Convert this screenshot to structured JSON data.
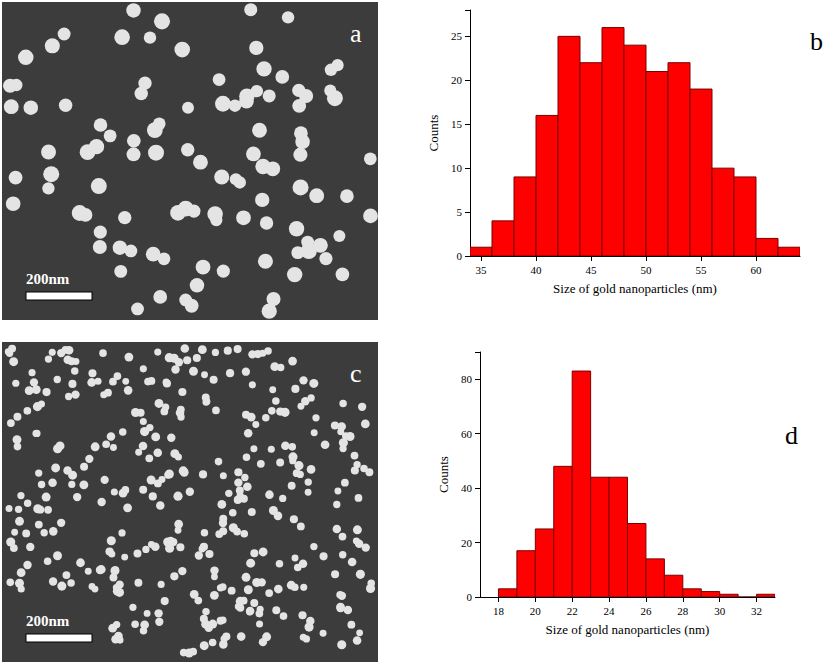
{
  "chart_data": [
    {
      "type": "histogram",
      "label": "b",
      "x_label": "Size of gold nanoparticles (nm)",
      "y_label": "Counts",
      "bins": [
        34,
        36,
        38,
        40,
        42,
        44,
        46,
        48,
        50,
        52,
        54,
        56,
        58,
        60,
        62,
        64
      ],
      "values": [
        1,
        4,
        9,
        16,
        25,
        22,
        26,
        24,
        21,
        22,
        19,
        10,
        9,
        2,
        1
      ],
      "color": "#ff0000",
      "xlim": [
        34,
        64
      ],
      "xticks": [
        35,
        40,
        45,
        50,
        55,
        60
      ],
      "ylim": [
        0,
        28
      ],
      "yticks": [
        0,
        5,
        10,
        15,
        20,
        25
      ],
      "grid": false
    },
    {
      "type": "histogram",
      "label": "d",
      "x_label": "Size of gold nanoparticles (nm)",
      "y_label": "Counts",
      "bins": [
        18,
        19,
        20,
        21,
        22,
        23,
        24,
        25,
        26,
        27,
        28,
        29,
        30,
        31,
        32,
        33
      ],
      "values": [
        3,
        17,
        25,
        48,
        83,
        44,
        44,
        27,
        14,
        8,
        3,
        2,
        1,
        0,
        1
      ],
      "color": "#ff0000",
      "xlim": [
        17,
        33
      ],
      "xticks": [
        18,
        20,
        22,
        24,
        26,
        28,
        30,
        32
      ],
      "ylim": [
        0,
        90
      ],
      "yticks": [
        0,
        20,
        40,
        60,
        80
      ],
      "grid": false
    }
  ],
  "images": [
    {
      "label": "a",
      "scale_bar": "200nm"
    },
    {
      "label": "c",
      "scale_bar": "200nm"
    }
  ]
}
